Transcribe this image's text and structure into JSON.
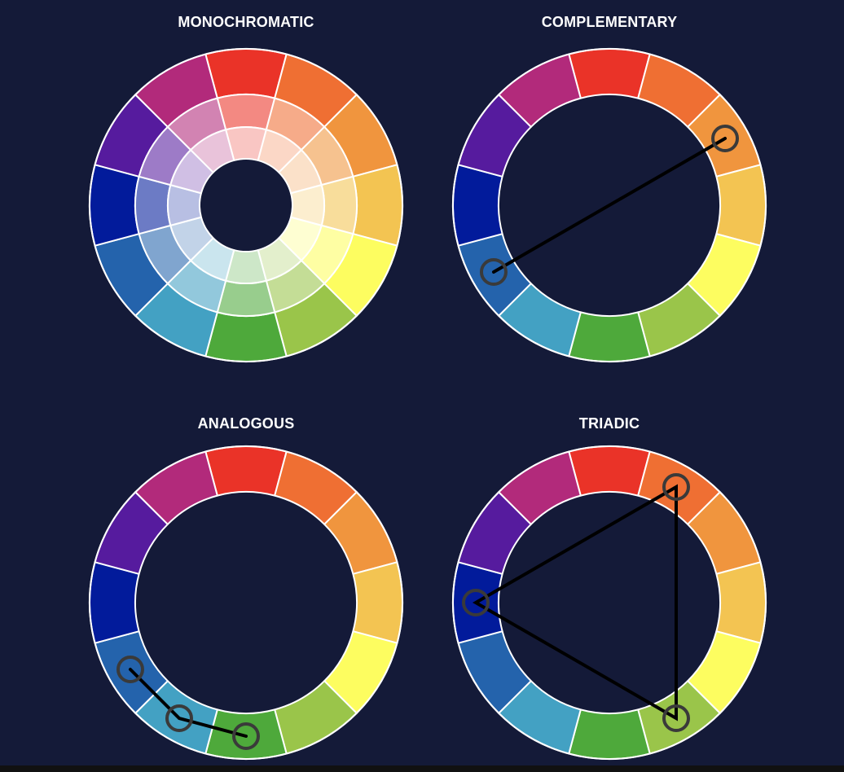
{
  "background": "#141a38",
  "hues": [
    "#ea3328",
    "#ef6f33",
    "#f0953e",
    "#f3c452",
    "#fdfd60",
    "#9ac54a",
    "#4ea93b",
    "#43a1c3",
    "#2463ac",
    "#021b9b",
    "#561b9e",
    "#b22a7b"
  ],
  "panels": [
    {
      "id": "monochromatic",
      "title": "MONOCHROMATIC",
      "type": "rings",
      "ring_tints": [
        0,
        0.42,
        0.72
      ],
      "markers": []
    },
    {
      "id": "complementary",
      "title": "COMPLEMENTARY",
      "type": "single",
      "markers": [
        2,
        8
      ],
      "connection": "line"
    },
    {
      "id": "analogous",
      "title": "ANALOGOUS",
      "type": "single",
      "markers": [
        8,
        7,
        6
      ],
      "connection": "path"
    },
    {
      "id": "triadic",
      "title": "TRIADIC",
      "type": "single",
      "markers": [
        1,
        9,
        5
      ],
      "connection": "polygon"
    }
  ]
}
